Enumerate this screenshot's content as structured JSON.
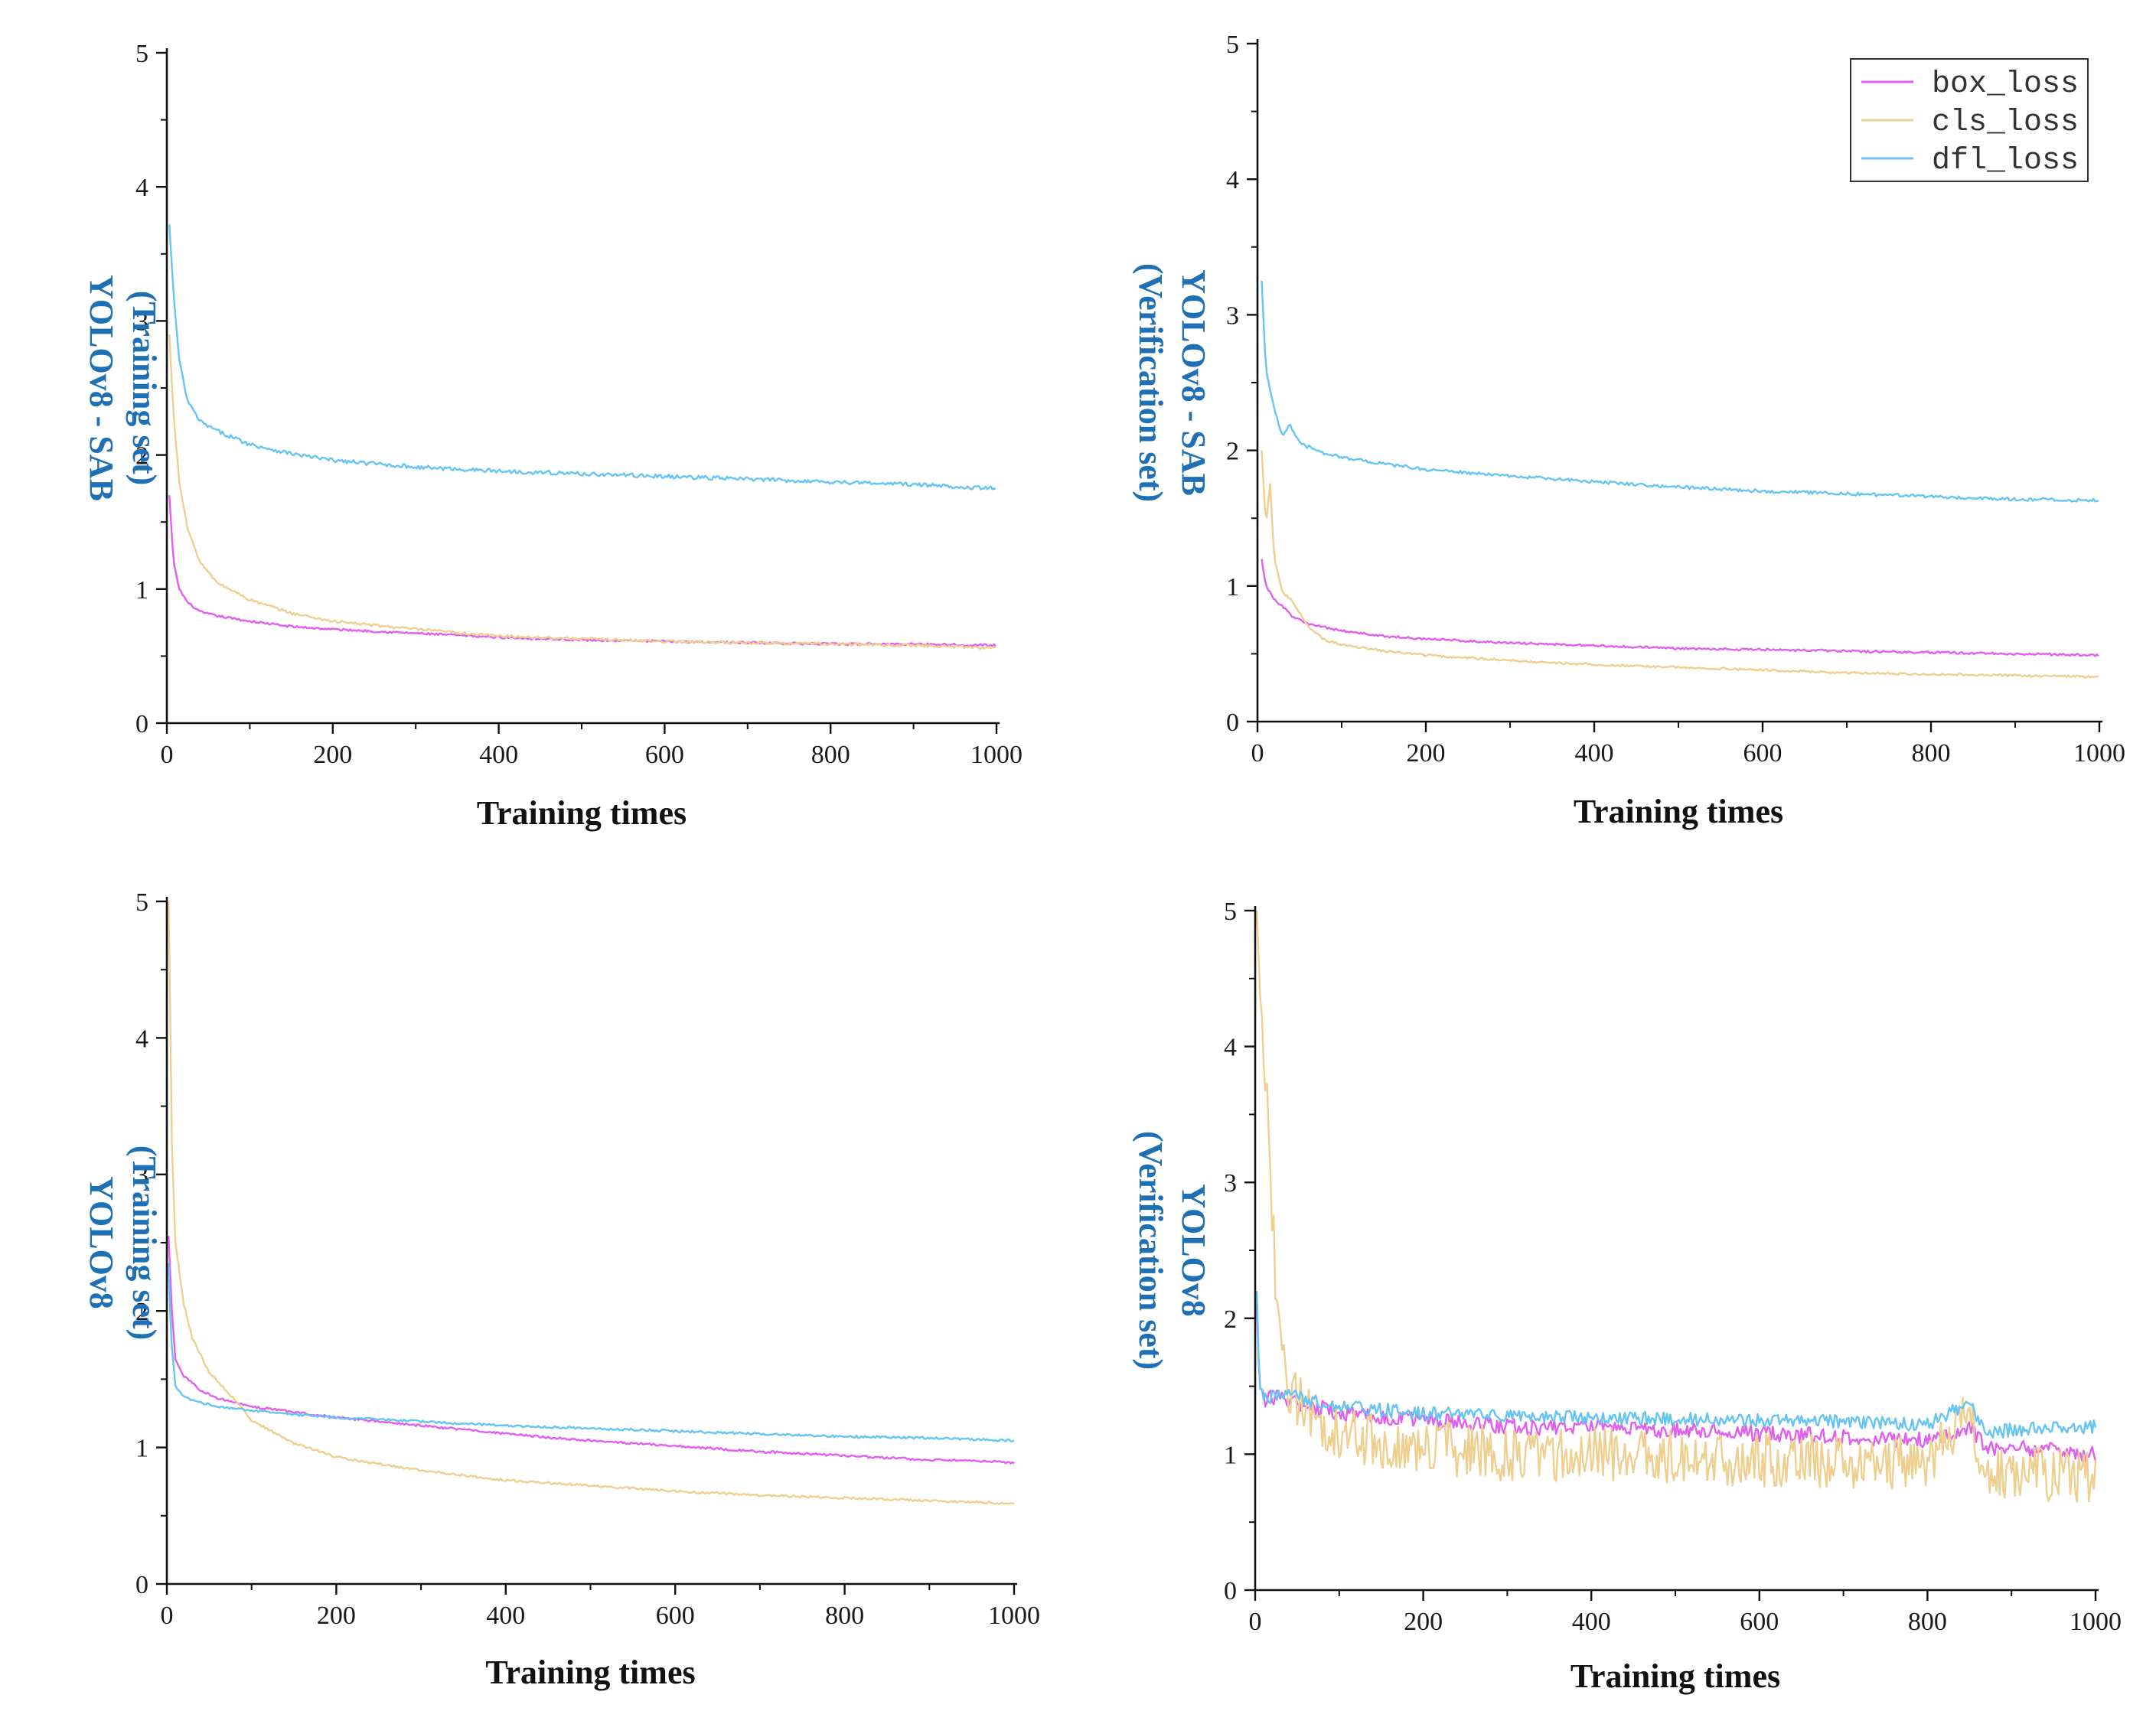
{
  "colors": {
    "box_loss": "#e05ef0",
    "cls_loss": "#efcf8f",
    "dfl_loss": "#66c4f5",
    "ytitle": "#1f6fb5",
    "axis": "#111111"
  },
  "legend": {
    "entries": [
      "box_loss",
      "cls_loss",
      "dfl_loss"
    ]
  },
  "chart_data": [
    {
      "id": "top-left",
      "type": "line",
      "ytitle_line1": "YOLOv8 - SAB",
      "ytitle_line2": "(Training set)",
      "xlabel": "Training times",
      "xlim": [
        0,
        1000
      ],
      "ylim": [
        0,
        5
      ],
      "xticks": [
        0,
        200,
        400,
        600,
        800,
        1000
      ],
      "yticks": [
        0,
        1,
        2,
        3,
        4,
        5
      ],
      "noise": {
        "box_loss": 0.008,
        "cls_loss": 0.01,
        "dfl_loss": 0.015
      },
      "series": [
        {
          "name": "box_loss",
          "points": [
            [
              3,
              1.7
            ],
            [
              8,
              1.2
            ],
            [
              15,
              1.0
            ],
            [
              25,
              0.9
            ],
            [
              40,
              0.83
            ],
            [
              60,
              0.8
            ],
            [
              100,
              0.76
            ],
            [
              150,
              0.72
            ],
            [
              200,
              0.7
            ],
            [
              300,
              0.67
            ],
            [
              400,
              0.64
            ],
            [
              500,
              0.62
            ],
            [
              600,
              0.61
            ],
            [
              700,
              0.6
            ],
            [
              800,
              0.59
            ],
            [
              900,
              0.59
            ],
            [
              1000,
              0.58
            ]
          ]
        },
        {
          "name": "cls_loss",
          "points": [
            [
              3,
              2.9
            ],
            [
              8,
              2.3
            ],
            [
              15,
              1.8
            ],
            [
              25,
              1.45
            ],
            [
              40,
              1.2
            ],
            [
              60,
              1.05
            ],
            [
              100,
              0.92
            ],
            [
              150,
              0.82
            ],
            [
              200,
              0.76
            ],
            [
              300,
              0.7
            ],
            [
              400,
              0.65
            ],
            [
              500,
              0.63
            ],
            [
              600,
              0.61
            ],
            [
              700,
              0.6
            ],
            [
              800,
              0.59
            ],
            [
              900,
              0.58
            ],
            [
              1000,
              0.56
            ]
          ]
        },
        {
          "name": "dfl_loss",
          "points": [
            [
              3,
              3.72
            ],
            [
              8,
              3.2
            ],
            [
              15,
              2.7
            ],
            [
              25,
              2.4
            ],
            [
              40,
              2.25
            ],
            [
              60,
              2.18
            ],
            [
              100,
              2.08
            ],
            [
              150,
              2.01
            ],
            [
              200,
              1.96
            ],
            [
              300,
              1.91
            ],
            [
              400,
              1.88
            ],
            [
              500,
              1.86
            ],
            [
              600,
              1.84
            ],
            [
              700,
              1.82
            ],
            [
              800,
              1.8
            ],
            [
              900,
              1.78
            ],
            [
              1000,
              1.75
            ]
          ]
        }
      ]
    },
    {
      "id": "top-right",
      "type": "line",
      "ytitle_line1": "YOLOv8 - SAB",
      "ytitle_line2": "(Verification set)",
      "xlabel": "Training times",
      "xlim": [
        0,
        1000
      ],
      "ylim": [
        0,
        5
      ],
      "xticks": [
        0,
        200,
        400,
        600,
        800,
        1000
      ],
      "yticks": [
        0,
        1,
        2,
        3,
        4,
        5
      ],
      "legend": true,
      "noise": {
        "box_loss": 0.008,
        "cls_loss": 0.008,
        "dfl_loss": 0.012
      },
      "series": [
        {
          "name": "box_loss",
          "points": [
            [
              5,
              1.2
            ],
            [
              10,
              1.0
            ],
            [
              20,
              0.9
            ],
            [
              30,
              0.85
            ],
            [
              40,
              0.78
            ],
            [
              60,
              0.72
            ],
            [
              100,
              0.67
            ],
            [
              150,
              0.63
            ],
            [
              200,
              0.61
            ],
            [
              300,
              0.58
            ],
            [
              400,
              0.56
            ],
            [
              500,
              0.54
            ],
            [
              600,
              0.53
            ],
            [
              700,
              0.52
            ],
            [
              800,
              0.51
            ],
            [
              900,
              0.5
            ],
            [
              1000,
              0.49
            ]
          ]
        },
        {
          "name": "cls_loss",
          "points": [
            [
              5,
              2.0
            ],
            [
              10,
              1.45
            ],
            [
              15,
              1.75
            ],
            [
              20,
              1.2
            ],
            [
              30,
              0.95
            ],
            [
              40,
              0.9
            ],
            [
              60,
              0.7
            ],
            [
              80,
              0.6
            ],
            [
              100,
              0.57
            ],
            [
              150,
              0.52
            ],
            [
              200,
              0.49
            ],
            [
              300,
              0.45
            ],
            [
              400,
              0.42
            ],
            [
              500,
              0.4
            ],
            [
              600,
              0.38
            ],
            [
              700,
              0.36
            ],
            [
              800,
              0.35
            ],
            [
              900,
              0.34
            ],
            [
              1000,
              0.33
            ]
          ]
        },
        {
          "name": "dfl_loss",
          "points": [
            [
              5,
              3.25
            ],
            [
              10,
              2.6
            ],
            [
              20,
              2.3
            ],
            [
              30,
              2.1
            ],
            [
              38,
              2.2
            ],
            [
              50,
              2.05
            ],
            [
              80,
              1.98
            ],
            [
              100,
              1.95
            ],
            [
              150,
              1.9
            ],
            [
              200,
              1.86
            ],
            [
              300,
              1.81
            ],
            [
              400,
              1.77
            ],
            [
              500,
              1.73
            ],
            [
              600,
              1.7
            ],
            [
              700,
              1.68
            ],
            [
              800,
              1.66
            ],
            [
              900,
              1.64
            ],
            [
              1000,
              1.63
            ]
          ]
        }
      ]
    },
    {
      "id": "bottom-left",
      "type": "line",
      "ytitle_line1": "YOLOv8",
      "ytitle_line2": "(Training set)",
      "xlabel": "Training times",
      "xlim": [
        0,
        1000
      ],
      "ylim": [
        0,
        5
      ],
      "xticks": [
        0,
        200,
        400,
        600,
        800,
        1000
      ],
      "yticks": [
        0,
        1,
        2,
        3,
        4,
        5
      ],
      "noise": {
        "box_loss": 0.008,
        "cls_loss": 0.008,
        "dfl_loss": 0.008
      },
      "series": [
        {
          "name": "box_loss",
          "points": [
            [
              2,
              2.55
            ],
            [
              6,
              2.0
            ],
            [
              10,
              1.65
            ],
            [
              20,
              1.52
            ],
            [
              40,
              1.42
            ],
            [
              60,
              1.36
            ],
            [
              100,
              1.3
            ],
            [
              150,
              1.26
            ],
            [
              200,
              1.22
            ],
            [
              300,
              1.16
            ],
            [
              400,
              1.1
            ],
            [
              500,
              1.05
            ],
            [
              600,
              1.01
            ],
            [
              700,
              0.97
            ],
            [
              800,
              0.94
            ],
            [
              900,
              0.91
            ],
            [
              1000,
              0.89
            ]
          ]
        },
        {
          "name": "cls_loss",
          "points": [
            [
              2,
              5.0
            ],
            [
              4,
              4.2
            ],
            [
              6,
              3.2
            ],
            [
              10,
              2.5
            ],
            [
              20,
              2.05
            ],
            [
              30,
              1.8
            ],
            [
              50,
              1.55
            ],
            [
              80,
              1.35
            ],
            [
              100,
              1.2
            ],
            [
              150,
              1.03
            ],
            [
              200,
              0.93
            ],
            [
              300,
              0.83
            ],
            [
              400,
              0.76
            ],
            [
              500,
              0.72
            ],
            [
              600,
              0.68
            ],
            [
              700,
              0.65
            ],
            [
              800,
              0.63
            ],
            [
              900,
              0.61
            ],
            [
              1000,
              0.59
            ]
          ]
        },
        {
          "name": "dfl_loss",
          "points": [
            [
              2,
              2.35
            ],
            [
              5,
              1.8
            ],
            [
              10,
              1.45
            ],
            [
              20,
              1.37
            ],
            [
              40,
              1.33
            ],
            [
              60,
              1.3
            ],
            [
              100,
              1.27
            ],
            [
              150,
              1.24
            ],
            [
              200,
              1.22
            ],
            [
              300,
              1.19
            ],
            [
              400,
              1.16
            ],
            [
              500,
              1.14
            ],
            [
              600,
              1.12
            ],
            [
              700,
              1.1
            ],
            [
              800,
              1.08
            ],
            [
              900,
              1.07
            ],
            [
              1000,
              1.05
            ]
          ]
        }
      ]
    },
    {
      "id": "bottom-right",
      "type": "line",
      "ytitle_line1": "YOLOv8",
      "ytitle_line2": "(Verification set)",
      "xlabel": "Training times",
      "xlim": [
        0,
        1000
      ],
      "ylim": [
        0,
        5
      ],
      "xticks": [
        0,
        200,
        400,
        600,
        800,
        1000
      ],
      "yticks": [
        0,
        1,
        2,
        3,
        4,
        5
      ],
      "noise": {
        "box_loss": 0.06,
        "cls_loss": 0.2,
        "dfl_loss": 0.05
      },
      "series": [
        {
          "name": "box_loss",
          "points": [
            [
              2,
              2.1
            ],
            [
              5,
              1.5
            ],
            [
              10,
              1.4
            ],
            [
              30,
              1.42
            ],
            [
              50,
              1.38
            ],
            [
              100,
              1.3
            ],
            [
              200,
              1.25
            ],
            [
              300,
              1.2
            ],
            [
              400,
              1.2
            ],
            [
              500,
              1.17
            ],
            [
              600,
              1.15
            ],
            [
              700,
              1.13
            ],
            [
              800,
              1.1
            ],
            [
              850,
              1.2
            ],
            [
              870,
              1.05
            ],
            [
              900,
              1.05
            ],
            [
              1000,
              1.0
            ]
          ]
        },
        {
          "name": "cls_loss",
          "points": [
            [
              2,
              5.0
            ],
            [
              5,
              4.5
            ],
            [
              10,
              3.8
            ],
            [
              15,
              3.5
            ],
            [
              20,
              2.8
            ],
            [
              25,
              2.2
            ],
            [
              30,
              1.8
            ],
            [
              40,
              1.5
            ],
            [
              60,
              1.3
            ],
            [
              100,
              1.15
            ],
            [
              200,
              1.05
            ],
            [
              300,
              1.0
            ],
            [
              400,
              1.0
            ],
            [
              500,
              0.98
            ],
            [
              600,
              0.96
            ],
            [
              700,
              0.95
            ],
            [
              800,
              0.93
            ],
            [
              850,
              1.3
            ],
            [
              870,
              0.85
            ],
            [
              900,
              0.85
            ],
            [
              1000,
              0.85
            ]
          ]
        },
        {
          "name": "dfl_loss",
          "points": [
            [
              2,
              2.2
            ],
            [
              5,
              1.5
            ],
            [
              10,
              1.4
            ],
            [
              30,
              1.45
            ],
            [
              50,
              1.42
            ],
            [
              100,
              1.35
            ],
            [
              200,
              1.3
            ],
            [
              300,
              1.28
            ],
            [
              400,
              1.27
            ],
            [
              500,
              1.26
            ],
            [
              600,
              1.25
            ],
            [
              700,
              1.24
            ],
            [
              800,
              1.22
            ],
            [
              850,
              1.38
            ],
            [
              870,
              1.15
            ],
            [
              900,
              1.18
            ],
            [
              1000,
              1.2
            ]
          ]
        }
      ]
    }
  ]
}
